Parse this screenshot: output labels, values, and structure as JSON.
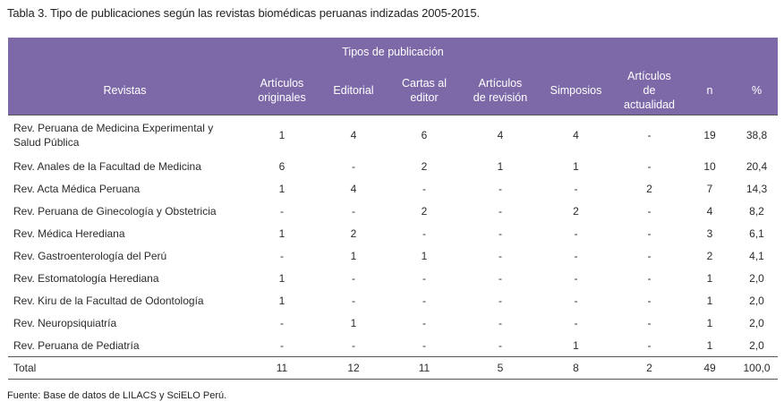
{
  "caption": "Tabla 3. Tipo de publicaciones según las revistas biomédicas peruanas indizadas 2005-2015.",
  "header": {
    "group_label": "Tipos de publicación",
    "revistas": "Revistas",
    "cols": [
      "Artículos originales",
      "Editorial",
      "Cartas al editor",
      "Artículos de revisión",
      "Simposios",
      "Artículos de actualidad",
      "n",
      "%"
    ]
  },
  "rows": [
    {
      "name": "Rev. Peruana de Medicina Experimental y Salud Pública",
      "v": [
        "1",
        "4",
        "6",
        "4",
        "4",
        "-",
        "19",
        "38,8"
      ]
    },
    {
      "name": "Rev. Anales de la Facultad de Medicina",
      "v": [
        "6",
        "-",
        "2",
        "1",
        "1",
        "-",
        "10",
        "20,4"
      ]
    },
    {
      "name": "Rev. Acta Médica Peruana",
      "v": [
        "1",
        "4",
        "-",
        "-",
        "-",
        "2",
        "7",
        "14,3"
      ]
    },
    {
      "name": "Rev. Peruana de Ginecología y Obstetricia",
      "v": [
        "-",
        "-",
        "2",
        "-",
        "2",
        "-",
        "4",
        "8,2"
      ]
    },
    {
      "name": "Rev. Médica Herediana",
      "v": [
        "1",
        "2",
        "-",
        "-",
        "-",
        "-",
        "3",
        "6,1"
      ]
    },
    {
      "name": "Rev. Gastroenterología del Perú",
      "v": [
        "-",
        "1",
        "1",
        "-",
        "-",
        "-",
        "2",
        "4,1"
      ]
    },
    {
      "name": "Rev. Estomatología Herediana",
      "v": [
        "1",
        "-",
        "-",
        "-",
        "-",
        "-",
        "1",
        "2,0"
      ]
    },
    {
      "name": "Rev. Kiru de la Facultad de Odontología",
      "v": [
        "1",
        "-",
        "-",
        "-",
        "-",
        "-",
        "1",
        "2,0"
      ]
    },
    {
      "name": "Rev. Neuropsiquiatría",
      "v": [
        "-",
        "1",
        "-",
        "-",
        "-",
        "-",
        "1",
        "2,0"
      ]
    },
    {
      "name": "Rev. Peruana de Pediatría",
      "v": [
        "-",
        "-",
        "-",
        "-",
        "1",
        "-",
        "1",
        "2,0"
      ]
    }
  ],
  "total": {
    "name": "Total",
    "v": [
      "11",
      "12",
      "11",
      "5",
      "8",
      "2",
      "49",
      "100,0"
    ]
  },
  "source": "Fuente: Base de datos de LILACS y SciELO Perú."
}
